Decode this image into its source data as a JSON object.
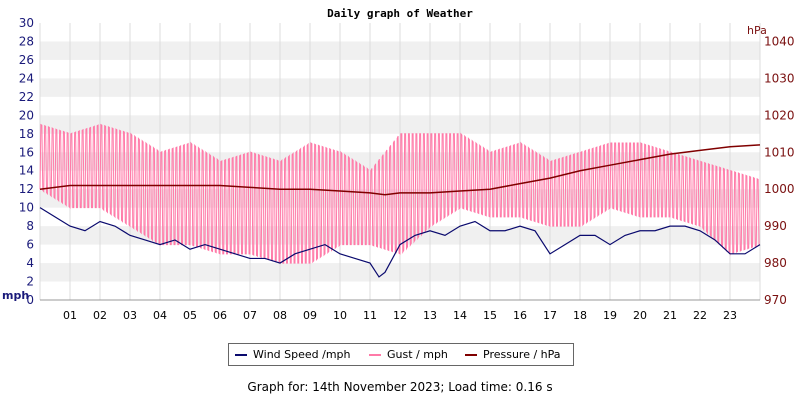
{
  "chart_data": {
    "type": "line",
    "title": "Daily graph of Weather",
    "left_axis": {
      "unit": "mph",
      "ylim": [
        0,
        30
      ],
      "ticks": [
        0,
        2,
        4,
        6,
        8,
        10,
        12,
        14,
        16,
        18,
        20,
        22,
        24,
        26,
        28,
        30
      ]
    },
    "right_axis": {
      "unit": "hPa",
      "ylim": [
        970,
        1045
      ],
      "ticks": [
        970,
        980,
        990,
        1000,
        1010,
        1020,
        1030,
        1040
      ]
    },
    "x_tick_labels": [
      "01",
      "02",
      "03",
      "04",
      "05",
      "06",
      "07",
      "08",
      "09",
      "10",
      "11",
      "12",
      "13",
      "14",
      "15",
      "16",
      "17",
      "18",
      "19",
      "20",
      "21",
      "22",
      "23"
    ],
    "grid": "horizontal bands",
    "legend_position": "bottom-center",
    "series": [
      {
        "name": "Wind Speed /mph",
        "axis": "left",
        "color": "#0a0a6e",
        "hours": [
          0,
          0.5,
          1,
          1.5,
          2,
          2.5,
          3,
          3.5,
          4,
          4.5,
          5,
          5.5,
          6,
          6.5,
          7,
          7.5,
          8,
          8.5,
          9,
          9.5,
          10,
          10.5,
          11,
          11.3,
          11.5,
          12,
          12.5,
          13,
          13.5,
          14,
          14.5,
          15,
          15.5,
          16,
          16.5,
          17,
          17.5,
          18,
          18.5,
          19,
          19.5,
          20,
          20.5,
          21,
          21.5,
          22,
          22.5,
          23,
          23.5,
          24
        ],
        "values": [
          10,
          9,
          8,
          7.5,
          8.5,
          8,
          7,
          6.5,
          6,
          6.5,
          5.5,
          6,
          5.5,
          5,
          4.5,
          4.5,
          4,
          5,
          5.5,
          6,
          5,
          4.5,
          4,
          2.5,
          3,
          6,
          7,
          7.5,
          7,
          8,
          8.5,
          7.5,
          7.5,
          8,
          7.5,
          5,
          6,
          7,
          7,
          6,
          7,
          7.5,
          7.5,
          8,
          8,
          7.5,
          6.5,
          5,
          5,
          6
        ]
      },
      {
        "name": "Gust / mph",
        "axis": "left",
        "color": "#ff7aa8",
        "hours": [
          0,
          1,
          2,
          3,
          4,
          5,
          6,
          7,
          8,
          9,
          10,
          11,
          12,
          13,
          14,
          15,
          16,
          17,
          18,
          19,
          20,
          21,
          22,
          23,
          24
        ],
        "values_min": [
          12,
          10,
          10,
          8,
          6,
          6,
          5,
          5,
          4,
          4,
          6,
          6,
          5,
          8,
          10,
          9,
          9,
          8,
          8,
          10,
          9,
          9,
          8,
          5,
          6
        ],
        "values_max": [
          19,
          18,
          19,
          18,
          16,
          17,
          15,
          16,
          15,
          17,
          16,
          14,
          18,
          18,
          18,
          16,
          17,
          15,
          16,
          17,
          17,
          16,
          15,
          14,
          13
        ]
      },
      {
        "name": "Pressure / hPa",
        "axis": "right",
        "color": "#800000",
        "hours": [
          0,
          1,
          2,
          3,
          4,
          5,
          6,
          7,
          8,
          9,
          10,
          11,
          11.5,
          12,
          13,
          14,
          15,
          16,
          17,
          18,
          19,
          20,
          21,
          22,
          23,
          24
        ],
        "values": [
          1000,
          1001,
          1001,
          1001,
          1001,
          1001,
          1001,
          1000.5,
          1000,
          1000,
          999.5,
          999,
          998.5,
          999,
          999,
          999.5,
          1000,
          1001.5,
          1003,
          1005,
          1006.5,
          1008,
          1009.5,
          1010.5,
          1011.5,
          1012
        ]
      }
    ]
  },
  "legend": {
    "wind": "Wind Speed /mph",
    "gust": "Gust / mph",
    "pressure": "Pressure / hPa"
  },
  "footer": "Graph for: 14th November 2023; Load time: 0.16 s",
  "colors": {
    "wind": "#0a0a6e",
    "gust": "#ff7aa8",
    "pressure": "#800000",
    "band": "#f0f0f0"
  }
}
